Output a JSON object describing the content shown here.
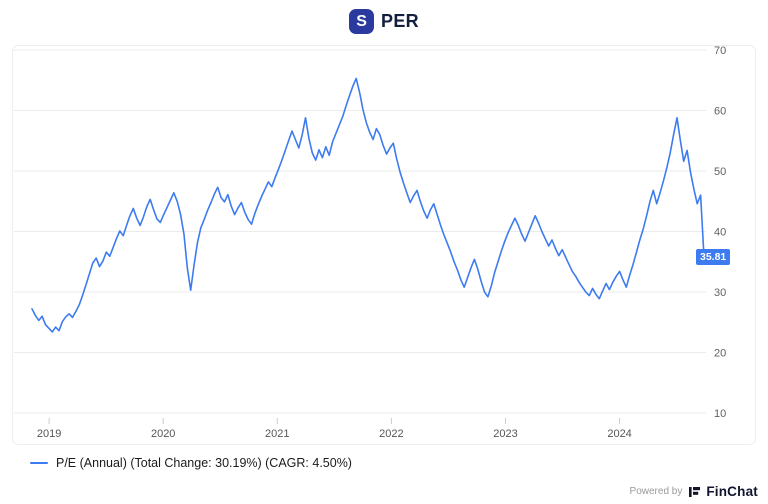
{
  "header": {
    "logo_letter": "S",
    "title": "PER"
  },
  "chart_data": {
    "type": "line",
    "title": "PER",
    "series_name": "P/E (Annual)",
    "total_change": "30.19%",
    "cagr": "4.50%",
    "line_color": "#3d7bf0",
    "grid": "horizontal",
    "legend_position": "bottom-left",
    "ylim": [
      10,
      70
    ],
    "yticks": [
      10,
      20,
      30,
      40,
      50,
      60,
      70
    ],
    "xticks": [
      2019,
      2020,
      2021,
      2022,
      2023,
      2024
    ],
    "x_start": 2018.85,
    "x_end": 2024.74,
    "last_value_label": "35.81",
    "values": [
      27.2,
      26.1,
      25.3,
      26.0,
      24.6,
      24.0,
      23.4,
      24.2,
      23.6,
      25.1,
      25.9,
      26.4,
      25.8,
      26.8,
      27.9,
      29.5,
      31.2,
      33.0,
      34.8,
      35.6,
      34.2,
      35.1,
      36.6,
      35.9,
      37.3,
      38.8,
      40.1,
      39.3,
      41.0,
      42.6,
      43.8,
      42.2,
      41.0,
      42.4,
      44.1,
      45.3,
      43.6,
      42.1,
      41.5,
      42.8,
      44.0,
      45.2,
      46.4,
      45.0,
      42.8,
      39.5,
      34.0,
      30.3,
      34.5,
      38.2,
      40.6,
      42.0,
      43.5,
      44.8,
      46.2,
      47.3,
      45.6,
      44.9,
      46.1,
      44.2,
      42.8,
      43.9,
      44.8,
      43.2,
      42.0,
      41.2,
      43.0,
      44.5,
      45.8,
      47.0,
      48.2,
      47.4,
      48.9,
      50.3,
      51.8,
      53.4,
      55.0,
      56.6,
      55.2,
      53.8,
      56.0,
      58.8,
      55.4,
      53.0,
      51.8,
      53.5,
      52.2,
      54.0,
      52.6,
      54.8,
      56.2,
      57.6,
      59.0,
      60.8,
      62.4,
      64.0,
      65.3,
      63.0,
      60.2,
      58.0,
      56.4,
      55.2,
      57.0,
      56.0,
      54.2,
      52.8,
      53.8,
      54.6,
      52.0,
      49.8,
      48.0,
      46.4,
      44.8,
      45.9,
      46.8,
      45.0,
      43.4,
      42.2,
      43.6,
      44.6,
      42.8,
      41.0,
      39.4,
      38.0,
      36.6,
      35.0,
      33.6,
      32.0,
      30.8,
      32.4,
      34.0,
      35.4,
      33.8,
      31.8,
      30.0,
      29.2,
      31.0,
      33.2,
      35.0,
      36.8,
      38.4,
      39.8,
      41.0,
      42.2,
      41.0,
      39.6,
      38.4,
      39.8,
      41.2,
      42.6,
      41.4,
      40.0,
      38.8,
      37.6,
      38.6,
      37.2,
      36.0,
      37.0,
      35.8,
      34.6,
      33.4,
      32.6,
      31.6,
      30.8,
      30.0,
      29.4,
      30.6,
      29.6,
      28.9,
      30.2,
      31.4,
      30.4,
      31.6,
      32.6,
      33.4,
      32.0,
      30.8,
      32.8,
      34.6,
      36.6,
      38.6,
      40.4,
      42.6,
      45.0,
      46.8,
      44.6,
      46.4,
      48.4,
      50.6,
      53.0,
      56.0,
      58.8,
      55.0,
      51.6,
      53.4,
      49.8,
      47.0,
      44.6,
      46.0,
      35.81
    ]
  },
  "legend": {
    "label": "P/E (Annual) (Total Change: 30.19%) (CAGR: 4.50%)"
  },
  "footer": {
    "powered_by": "Powered by",
    "brand": "FinChat"
  }
}
